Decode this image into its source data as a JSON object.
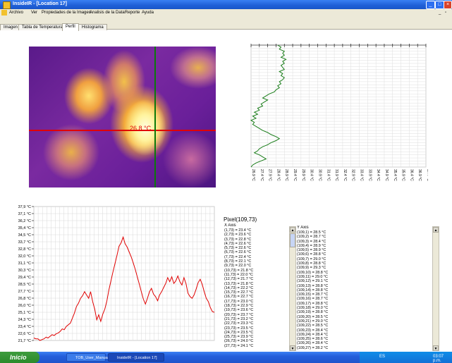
{
  "window": {
    "title": "InsideIR - [Location 17]"
  },
  "menu": {
    "items": [
      "Archivo",
      "Ver",
      "Propiedades de la Imagen",
      "Analisis de la Data",
      "Reporte",
      "Ayuda"
    ]
  },
  "tabs": [
    {
      "label": "Imagen"
    },
    {
      "label": "Tabla de Temperatura"
    },
    {
      "label": "Perfil",
      "active": true
    },
    {
      "label": "Histograma"
    }
  ],
  "thermal": {
    "cursor_temp": "26.8 °C"
  },
  "vprofile_chart": {
    "type": "line",
    "orientation": "vertical",
    "axis_labels": [
      "26.9 °C",
      "27.4 °C",
      "27.9 °C",
      "28.4 °C",
      "28.9 °C",
      "29.4 °C",
      "29.9 °C",
      "30.4 °C",
      "30.9 °C",
      "31.4 °C",
      "31.9 °C",
      "32.4 °C",
      "32.9 °C",
      "33.4 °C",
      "33.9 °C",
      "34.4 °C",
      "34.9 °C",
      "35.4 °C",
      "35.9 °C",
      "36.4 °C",
      "36.9 °C",
      "37.4 °C"
    ],
    "color": "#1a7d1a",
    "values": [
      28.5,
      28.7,
      28.6,
      28.9,
      28.8,
      28.9,
      28.7,
      29.0,
      28.8,
      28.9,
      28.7,
      28.8,
      28.9,
      28.6,
      28.8,
      28.7,
      28.9,
      28.8,
      28.6,
      28.7,
      28.5,
      28.6,
      28.4,
      28.3,
      28.0,
      27.8,
      27.6,
      27.9,
      27.7,
      27.5,
      27.6,
      27.3,
      27.4,
      27.1,
      27.3,
      27.0,
      27.2,
      26.9,
      27.1,
      27.0,
      27.2,
      27.4,
      27.6,
      27.9,
      28.1,
      28.4,
      28.6,
      28.4,
      28.1,
      27.9,
      27.6,
      27.4,
      27.3,
      27.1,
      27.4,
      27.6,
      27.8,
      27.5,
      27.2,
      27.0,
      26.9
    ]
  },
  "hprofile_chart": {
    "type": "line",
    "axis_labels": [
      "37,9 °C",
      "37,1 °C",
      "36,2 °C",
      "35,4 °C",
      "34,5 °C",
      "33,7 °C",
      "32,8 °C",
      "32,0 °C",
      "31,1 °C",
      "30,3 °C",
      "29,4 °C",
      "28,5 °C",
      "27,7 °C",
      "26,8 °C",
      "26,0 °C",
      "25,1 °C",
      "24,3 °C",
      "23,4 °C",
      "22,6 °C",
      "21,7 °C"
    ],
    "ylim": [
      21.7,
      37.9
    ],
    "color": "#e00000",
    "values": [
      22.0,
      21.9,
      21.9,
      21.7,
      21.8,
      21.9,
      22.1,
      22.0,
      22.2,
      22.4,
      22.3,
      22.5,
      22.6,
      22.8,
      23.1,
      23.0,
      23.4,
      23.6,
      23.8,
      24.4,
      25.0,
      25.8,
      26.2,
      26.8,
      27.1,
      27.6,
      27.2,
      26.8,
      27.6,
      26.4,
      25.5,
      24.2,
      24.8,
      24.0,
      24.9,
      25.5,
      26.5,
      27.8,
      28.9,
      30.0,
      31.0,
      32.0,
      33.1,
      33.5,
      34.2,
      33.4,
      33.0,
      32.4,
      31.8,
      31.1,
      30.3,
      29.4,
      28.5,
      27.6,
      26.7,
      26.1,
      26.8,
      27.6,
      28.0,
      27.3,
      27.0,
      26.5,
      27.2,
      27.6,
      28.1,
      28.6,
      29.3,
      28.8,
      29.4,
      28.6,
      28.9,
      29.5,
      28.8,
      28.4,
      29.3,
      28.6,
      27.4,
      27.0,
      26.8,
      27.2,
      27.9,
      28.7,
      29.1,
      28.5,
      27.6,
      26.8,
      26.4,
      25.7,
      25.2,
      25.1
    ]
  },
  "pixel": {
    "title": "Pixel(109,73)",
    "x_header": "X Axis",
    "y_header": "Y Axis",
    "x_list": [
      "(1,73) = 23.4 °C",
      "(2,73) = 23.6 °C",
      "(3,73) = 22.8 °C",
      "(4,73) = 22.6 °C",
      "(5,73) = 22.6 °C",
      "(6,73) = 22.6 °C",
      "(7,73) = 22.4 °C",
      "(8,73) = 22.1 °C",
      "(9,73) = 22.0 °C",
      "(10,73) = 21.8 °C",
      "(11,73) = 22.0 °C",
      "(12,73) = 21.7 °C",
      "(13,73) = 21.8 °C",
      "(14,73) = 22.2 °C",
      "(15,73) = 22.7 °C",
      "(16,73) = 22.7 °C",
      "(17,73) = 23.0 °C",
      "(18,73) = 22.9 °C",
      "(19,73) = 23.6 °C",
      "(20,73) = 23.7 °C",
      "(21,73) = 23.2 °C",
      "(22,73) = 23.3 °C",
      "(23,73) = 23.5 °C",
      "(24,73) = 23.5 °C",
      "(25,73) = 23.9 °C",
      "(26,73) = 24.0 °C",
      "(27,73) = 24.1 °C"
    ],
    "y_list": [
      "(109,1) = 28.5 °C",
      "(109,2) = 28.7 °C",
      "(109,3) = 28.4 °C",
      "(109,4) = 28.9 °C",
      "(109,5) = 28.9 °C",
      "(109,6) = 28.8 °C",
      "(109,7) = 29.0 °C",
      "(109,8) = 28.8 °C",
      "(109,9) = 29.3 °C",
      "(109,10) = 28.8 °C",
      "(109,11) = 29.0 °C",
      "(109,12) = 29.1 °C",
      "(109,13) = 28.8 °C",
      "(109,14) = 28.8 °C",
      "(109,15) = 28.7 °C",
      "(109,16) = 28.7 °C",
      "(109,17) = 28.8 °C",
      "(109,18) = 29.0 °C",
      "(109,19) = 28.8 °C",
      "(109,20) = 28.5 °C",
      "(109,21) = 29.0 °C",
      "(109,22) = 28.5 °C",
      "(109,23) = 28.4 °C",
      "(109,24) = 28.4 °C",
      "(109,25) = 28.6 °C",
      "(109,26) = 28.4 °C",
      "(109,27) = 28.2 °C"
    ]
  },
  "taskbar": {
    "start_label": "Inicio",
    "tasks": [
      "TOB_User_Manual_S...",
      "InsideIR - [Location 17]"
    ],
    "tray_lang": "ES",
    "clock": "03:07 p.m."
  },
  "colors": {
    "titlebar": "#245edb",
    "crosshair_h": "#e00000",
    "crosshair_v": "#0a7a0a"
  }
}
